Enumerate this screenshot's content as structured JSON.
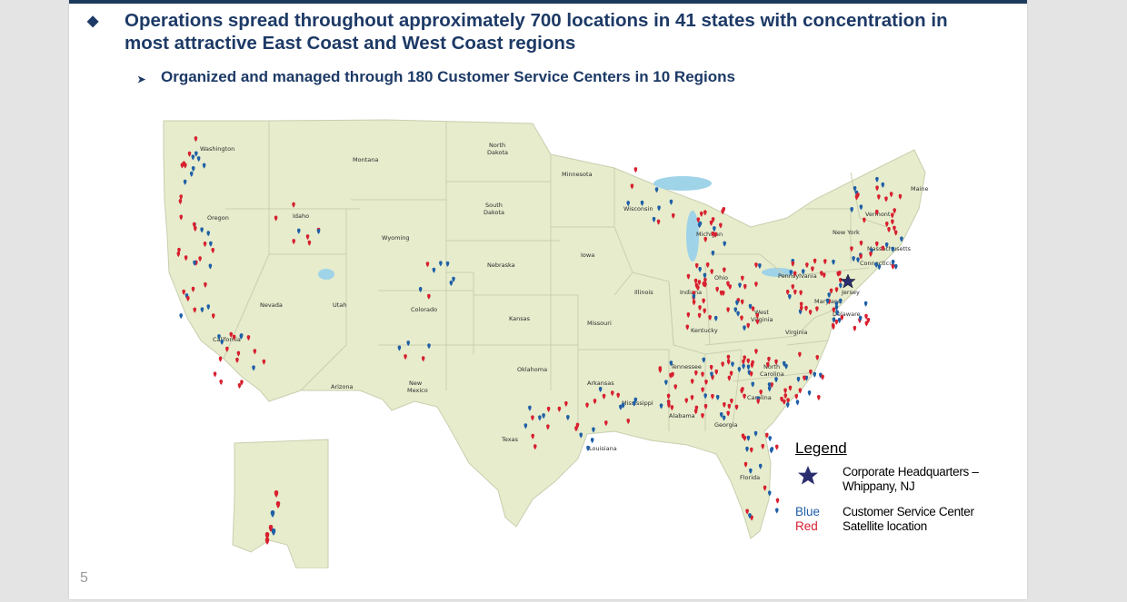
{
  "slide": {
    "bullet_main": "Operations spread throughout approximately 700 locations in 41 states with concentration in most attractive East Coast and West Coast regions",
    "bullet_sub": "Organized and managed through 180 Customer Service Centers in 10 Regions",
    "page_number": "5"
  },
  "map": {
    "states": [
      "Washington",
      "Oregon",
      "California",
      "Nevada",
      "Idaho",
      "Montana",
      "Wyoming",
      "Utah",
      "Arizona",
      "Colorado",
      "New Mexico",
      "North Dakota",
      "South Dakota",
      "Nebraska",
      "Kansas",
      "Oklahoma",
      "Texas",
      "Minnesota",
      "Iowa",
      "Missouri",
      "Arkansas",
      "Louisiana",
      "Wisconsin",
      "Illinois",
      "Michigan",
      "Indiana",
      "Ohio",
      "Kentucky",
      "Tennessee",
      "Mississippi",
      "Alabama",
      "Georgia",
      "Florida",
      "South Carolina",
      "North Carolina",
      "Virginia",
      "West Virginia",
      "Pennsylvania",
      "New York",
      "New Jersey",
      "Maryland",
      "Delaware",
      "Connecticut",
      "Massachusetts",
      "Vermont",
      "Maine"
    ]
  },
  "legend": {
    "title": "Legend",
    "hq_label": "Corporate Headquarters – Whippany, NJ",
    "blue_word": "Blue",
    "blue_label": "Customer Service Center",
    "red_word": "Red",
    "red_label": "Satellite location"
  },
  "colors": {
    "title_text": "#1d3a66",
    "top_bar": "#1c3a5c",
    "land": "#e6eccc",
    "water": "#9fd3e8",
    "customer_service_center": "#1f5fa6",
    "satellite_location": "#d8202f",
    "hq_star": "#2a2d6e"
  },
  "icons": {
    "bullet_main": "diamond-icon",
    "bullet_sub": "arrowhead-icon",
    "hq": "star-icon",
    "location": "map-pin-icon"
  }
}
